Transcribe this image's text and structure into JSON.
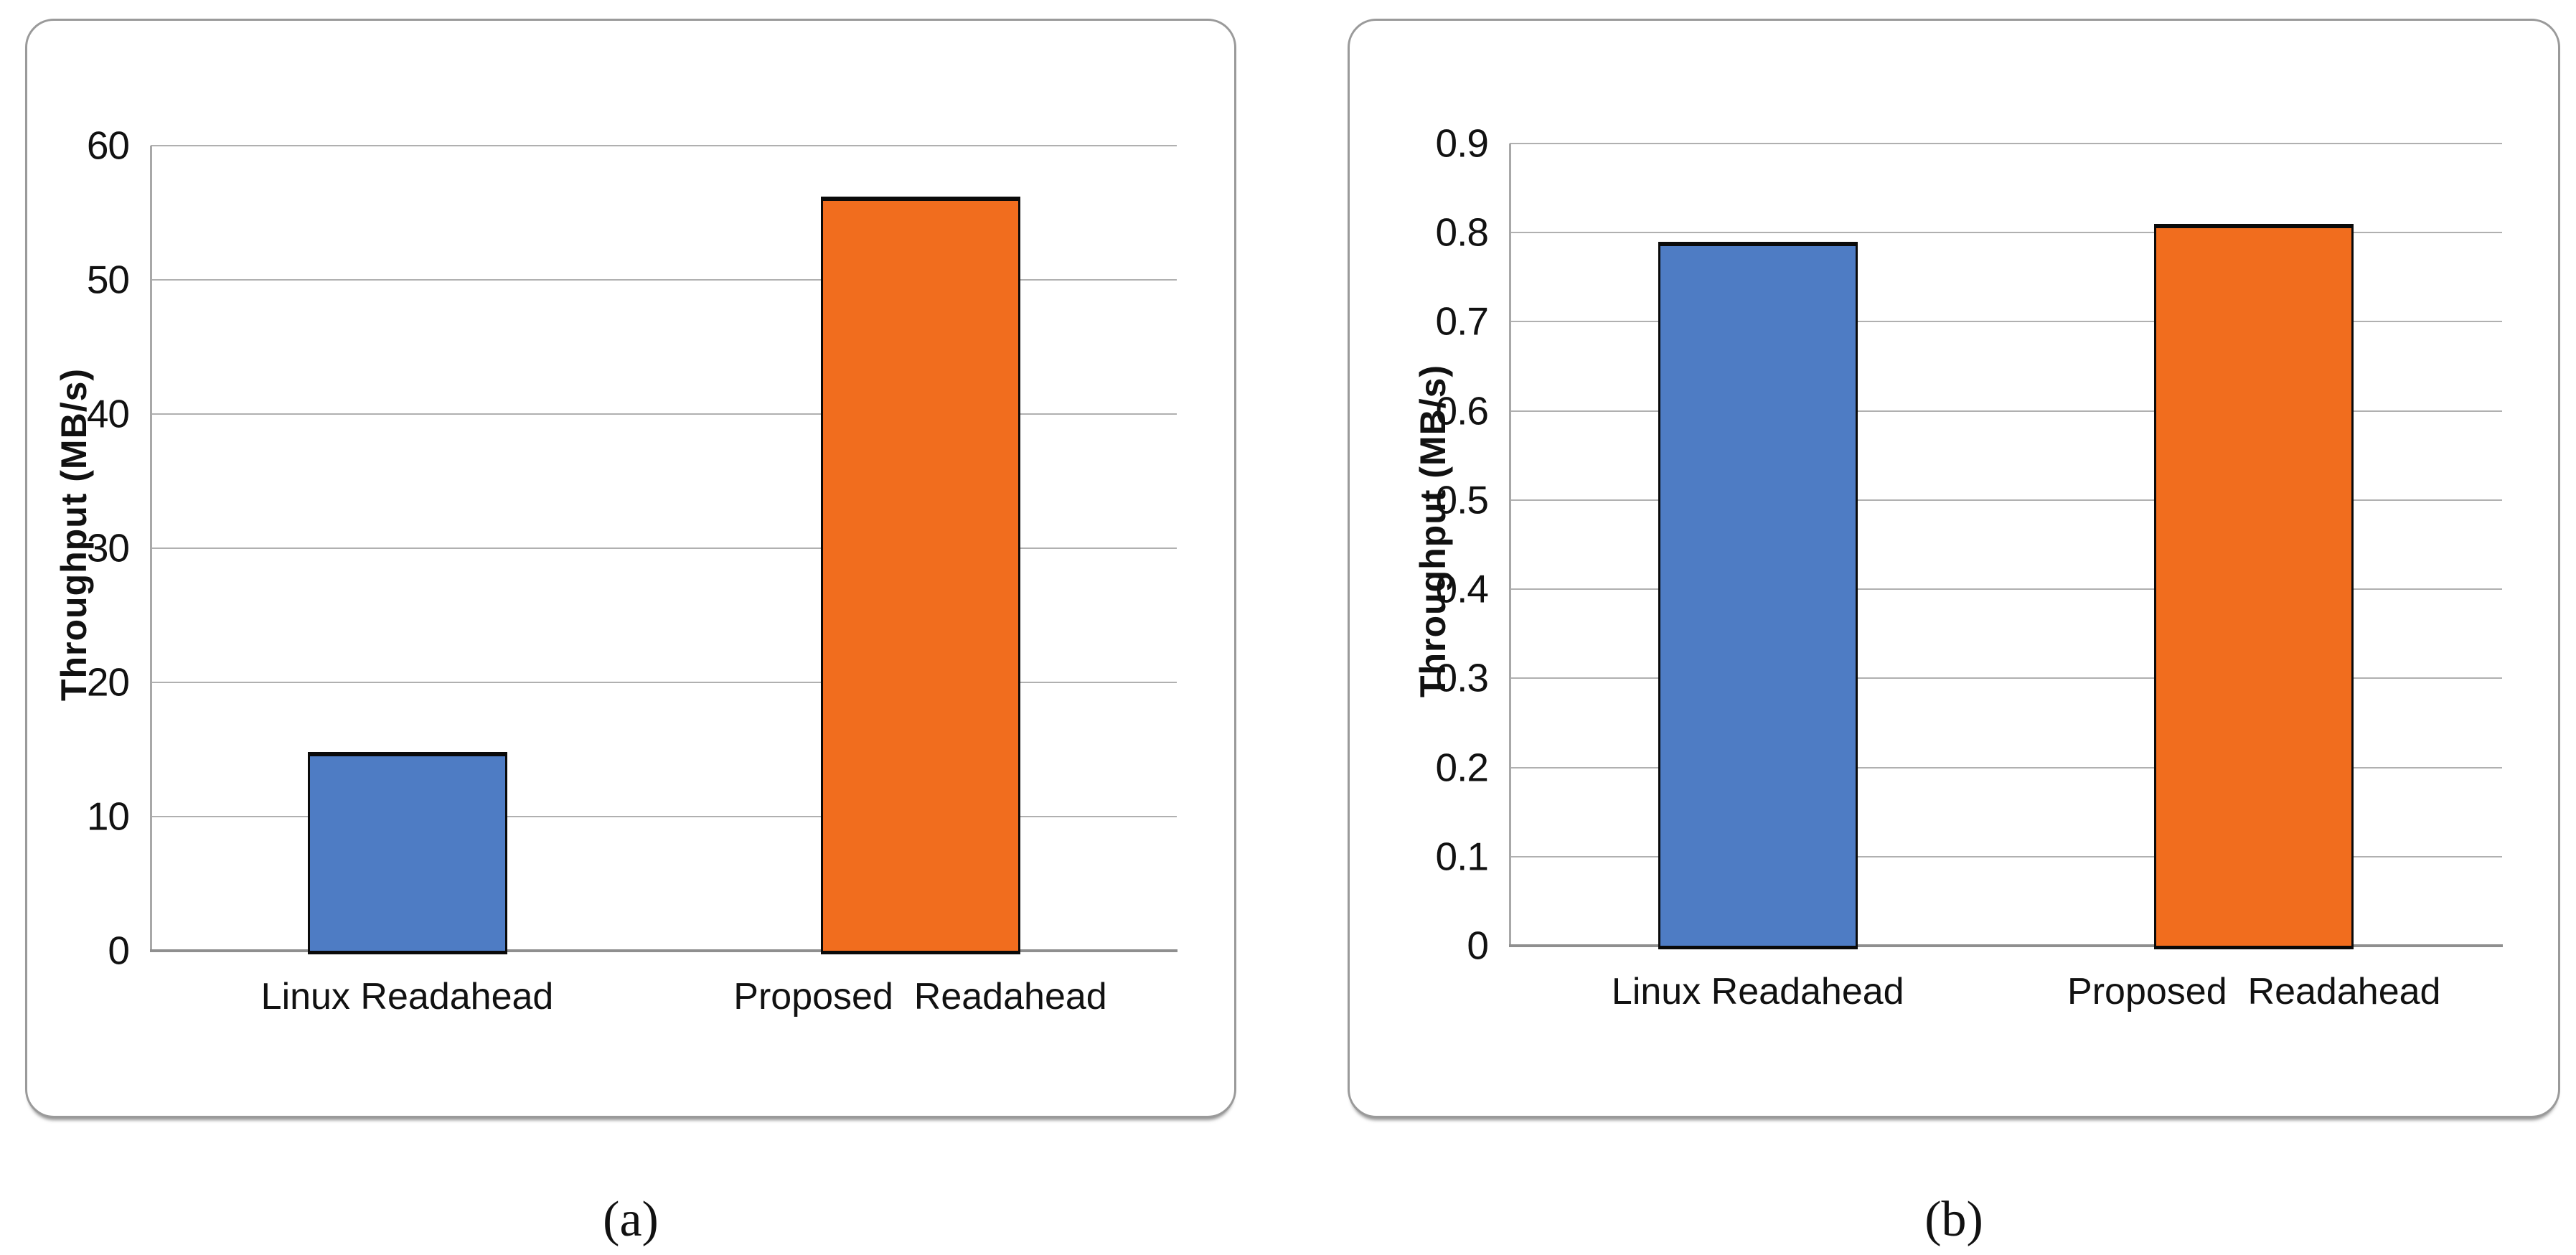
{
  "page": {
    "background": "#ffffff"
  },
  "colors": {
    "bar_blue": "#4E7CC4",
    "bar_orange": "#F16D1E",
    "bar_border": "#0a0a0a",
    "gridline": "#b0b0b0",
    "y_axis_line": "#a8a8a8",
    "x_axis_line": "#8f8f8f",
    "card_border": "#9a9a9a",
    "text": "#111111"
  },
  "chart_data": [
    {
      "type": "bar",
      "panel": "a",
      "caption": "(a)",
      "title": "",
      "xlabel": "",
      "ylabel": "Throughput (MB/s)",
      "categories": [
        "Linux Readahead",
        "Proposed  Readahead"
      ],
      "values": [
        14.8,
        56.2
      ],
      "series_colors": [
        "bar_blue",
        "bar_orange"
      ],
      "ylim": [
        0,
        60
      ],
      "yticks": [
        "0",
        "10",
        "20",
        "30",
        "40",
        "50",
        "60"
      ],
      "grid": true,
      "legend": "none"
    },
    {
      "type": "bar",
      "panel": "b",
      "caption": "(b)",
      "title": "",
      "xlabel": "",
      "ylabel": "Throughput (MB/s)",
      "categories": [
        "Linux Readahead",
        "Proposed  Readahead"
      ],
      "values": [
        0.79,
        0.81
      ],
      "series_colors": [
        "bar_blue",
        "bar_orange"
      ],
      "ylim": [
        0,
        0.9
      ],
      "yticks": [
        "0",
        "0.1",
        "0.2",
        "0.3",
        "0.4",
        "0.5",
        "0.6",
        "0.7",
        "0.8",
        "0.9"
      ],
      "grid": true,
      "legend": "none"
    }
  ]
}
